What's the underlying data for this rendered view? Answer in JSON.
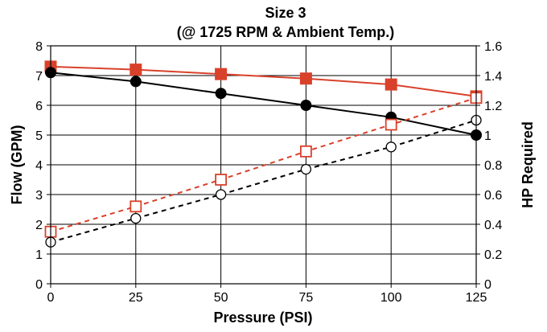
{
  "chart_data": {
    "type": "line",
    "title_lines": [
      "Size 3",
      "(@ 1725 RPM & Ambient Temp.)"
    ],
    "xlabel": "Pressure (PSI)",
    "ylabel": "Flow (GPM)",
    "y2label": "HP Required",
    "x": [
      0,
      25,
      50,
      75,
      100,
      125
    ],
    "xlim": [
      0,
      125
    ],
    "ylim": [
      0,
      8
    ],
    "y2lim": [
      0,
      1.6
    ],
    "x_ticks": [
      "0",
      "25",
      "50",
      "75",
      "100",
      "125"
    ],
    "y_ticks": [
      "0",
      "1",
      "2",
      "3",
      "4",
      "5",
      "6",
      "7",
      "8"
    ],
    "y2_ticks": [
      "0",
      "0.2",
      "0.4",
      "0.6",
      "0.8",
      "1",
      "1.2",
      "1.4",
      "1.6"
    ],
    "grid": true,
    "series": [
      {
        "axis": "left",
        "marker": "square-filled",
        "line": "solid",
        "color": "#d9412b",
        "values": [
          7.3,
          7.2,
          7.05,
          6.9,
          6.7,
          6.3
        ]
      },
      {
        "axis": "left",
        "marker": "circle-filled",
        "line": "solid",
        "color": "#000000",
        "values": [
          7.1,
          6.8,
          6.4,
          6.0,
          5.6,
          5.0
        ]
      },
      {
        "axis": "right",
        "marker": "square-open",
        "line": "dashed",
        "color": "#d9412b",
        "values": [
          0.35,
          0.52,
          0.7,
          0.89,
          1.07,
          1.25
        ]
      },
      {
        "axis": "right",
        "marker": "circle-open",
        "line": "dashed",
        "color": "#000000",
        "values": [
          0.28,
          0.44,
          0.6,
          0.77,
          0.92,
          1.1
        ]
      }
    ]
  }
}
